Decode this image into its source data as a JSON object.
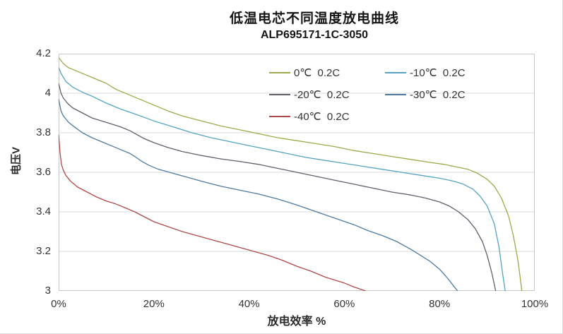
{
  "chart_data": {
    "type": "line",
    "title": "低温电芯不同温度放电曲线",
    "subtitle": "ALP695171-1C-3050",
    "xlabel": "放电效率 %",
    "ylabel": "电压V",
    "xlim": [
      0,
      100
    ],
    "ylim": [
      3.0,
      4.2
    ],
    "x_ticks": [
      "0%",
      "20%",
      "40%",
      "60%",
      "80%",
      "100%"
    ],
    "x_tick_values": [
      0,
      20,
      40,
      60,
      80,
      100
    ],
    "y_ticks": [
      "4.2",
      "4",
      "3.8",
      "3.6",
      "3.4",
      "3.2",
      "3"
    ],
    "y_tick_values": [
      4.2,
      4.0,
      3.8,
      3.6,
      3.4,
      3.2,
      3.0
    ],
    "grid": "horizontal-only",
    "grid_color": "#d9d9d9",
    "border_color": "#c6c6c6",
    "legend_position": "top-center-inside, 2 columns",
    "series": [
      {
        "name": "0℃  0.2C",
        "color": "#9fa84a",
        "points": [
          [
            0,
            4.18
          ],
          [
            1,
            4.15
          ],
          [
            2,
            4.13
          ],
          [
            4,
            4.11
          ],
          [
            6,
            4.09
          ],
          [
            8,
            4.07
          ],
          [
            10,
            4.05
          ],
          [
            12,
            4.02
          ],
          [
            15,
            3.99
          ],
          [
            18,
            3.96
          ],
          [
            20,
            3.94
          ],
          [
            23,
            3.91
          ],
          [
            26,
            3.885
          ],
          [
            30,
            3.86
          ],
          [
            34,
            3.835
          ],
          [
            38,
            3.815
          ],
          [
            42,
            3.795
          ],
          [
            46,
            3.775
          ],
          [
            50,
            3.76
          ],
          [
            54,
            3.745
          ],
          [
            58,
            3.73
          ],
          [
            62,
            3.71
          ],
          [
            66,
            3.695
          ],
          [
            70,
            3.68
          ],
          [
            74,
            3.665
          ],
          [
            78,
            3.65
          ],
          [
            81,
            3.64
          ],
          [
            84,
            3.625
          ],
          [
            86,
            3.615
          ],
          [
            88,
            3.595
          ],
          [
            90,
            3.565
          ],
          [
            91.5,
            3.53
          ],
          [
            93,
            3.47
          ],
          [
            94.5,
            3.38
          ],
          [
            95.5,
            3.28
          ],
          [
            96.5,
            3.15
          ],
          [
            97.3,
            3.0
          ]
        ]
      },
      {
        "name": "-10℃  0.2C",
        "color": "#55a3c0",
        "points": [
          [
            0,
            4.13
          ],
          [
            0.5,
            4.1
          ],
          [
            1.5,
            4.06
          ],
          [
            3,
            4.03
          ],
          [
            5,
            4.005
          ],
          [
            7,
            3.985
          ],
          [
            10,
            3.95
          ],
          [
            13,
            3.92
          ],
          [
            16,
            3.895
          ],
          [
            20,
            3.86
          ],
          [
            24,
            3.83
          ],
          [
            28,
            3.8
          ],
          [
            32,
            3.775
          ],
          [
            36,
            3.755
          ],
          [
            40,
            3.735
          ],
          [
            44,
            3.715
          ],
          [
            48,
            3.695
          ],
          [
            52,
            3.675
          ],
          [
            56,
            3.66
          ],
          [
            60,
            3.645
          ],
          [
            64,
            3.63
          ],
          [
            68,
            3.615
          ],
          [
            72,
            3.6
          ],
          [
            76,
            3.585
          ],
          [
            80,
            3.57
          ],
          [
            83,
            3.555
          ],
          [
            85,
            3.54
          ],
          [
            87,
            3.515
          ],
          [
            88.5,
            3.48
          ],
          [
            90,
            3.43
          ],
          [
            91.5,
            3.34
          ],
          [
            92.5,
            3.22
          ],
          [
            93.3,
            3.08
          ],
          [
            93.8,
            3.0
          ]
        ]
      },
      {
        "name": "-20℃  0.2C",
        "color": "#5f5f6d",
        "points": [
          [
            0,
            4.05
          ],
          [
            0.5,
            4.0
          ],
          [
            1,
            3.975
          ],
          [
            2,
            3.945
          ],
          [
            3,
            3.925
          ],
          [
            5,
            3.9
          ],
          [
            7,
            3.875
          ],
          [
            9,
            3.86
          ],
          [
            11,
            3.845
          ],
          [
            13,
            3.83
          ],
          [
            15,
            3.81
          ],
          [
            16.5,
            3.79
          ],
          [
            18,
            3.77
          ],
          [
            20,
            3.75
          ],
          [
            23,
            3.725
          ],
          [
            26,
            3.705
          ],
          [
            30,
            3.685
          ],
          [
            34,
            3.668
          ],
          [
            38,
            3.655
          ],
          [
            42,
            3.64
          ],
          [
            46,
            3.62
          ],
          [
            50,
            3.6
          ],
          [
            54,
            3.58
          ],
          [
            58,
            3.56
          ],
          [
            62,
            3.54
          ],
          [
            66,
            3.52
          ],
          [
            70,
            3.5
          ],
          [
            74,
            3.485
          ],
          [
            77,
            3.47
          ],
          [
            80,
            3.45
          ],
          [
            82,
            3.43
          ],
          [
            84,
            3.4
          ],
          [
            86,
            3.36
          ],
          [
            87.5,
            3.315
          ],
          [
            89,
            3.25
          ],
          [
            90,
            3.18
          ],
          [
            91,
            3.09
          ],
          [
            91.8,
            3.0
          ]
        ]
      },
      {
        "name": "-30℃  0.2C",
        "color": "#4d7a9e",
        "points": [
          [
            0,
            3.97
          ],
          [
            0.5,
            3.91
          ],
          [
            1,
            3.885
          ],
          [
            2,
            3.855
          ],
          [
            3,
            3.835
          ],
          [
            5,
            3.8
          ],
          [
            7,
            3.775
          ],
          [
            9,
            3.755
          ],
          [
            11,
            3.735
          ],
          [
            13,
            3.715
          ],
          [
            15,
            3.695
          ],
          [
            16,
            3.68
          ],
          [
            17.5,
            3.655
          ],
          [
            19,
            3.635
          ],
          [
            21,
            3.615
          ],
          [
            24,
            3.595
          ],
          [
            27,
            3.575
          ],
          [
            30,
            3.555
          ],
          [
            34,
            3.53
          ],
          [
            38,
            3.51
          ],
          [
            42,
            3.49
          ],
          [
            46,
            3.465
          ],
          [
            50,
            3.435
          ],
          [
            53,
            3.41
          ],
          [
            56,
            3.385
          ],
          [
            59,
            3.36
          ],
          [
            62,
            3.335
          ],
          [
            65,
            3.305
          ],
          [
            68,
            3.28
          ],
          [
            71,
            3.25
          ],
          [
            74,
            3.21
          ],
          [
            76,
            3.18
          ],
          [
            78,
            3.15
          ],
          [
            80,
            3.11
          ],
          [
            81.5,
            3.07
          ],
          [
            82.8,
            3.03
          ],
          [
            83.8,
            3.0
          ]
        ]
      },
      {
        "name": "-40℃  0.2C",
        "color": "#ac4a48",
        "points": [
          [
            0,
            3.79
          ],
          [
            0.3,
            3.7
          ],
          [
            0.6,
            3.64
          ],
          [
            1,
            3.61
          ],
          [
            1.5,
            3.585
          ],
          [
            2.5,
            3.555
          ],
          [
            4,
            3.525
          ],
          [
            6,
            3.5
          ],
          [
            8,
            3.475
          ],
          [
            10,
            3.455
          ],
          [
            12,
            3.44
          ],
          [
            14,
            3.42
          ],
          [
            16,
            3.4
          ],
          [
            18,
            3.375
          ],
          [
            20,
            3.35
          ],
          [
            23,
            3.325
          ],
          [
            26,
            3.3
          ],
          [
            29,
            3.28
          ],
          [
            32,
            3.26
          ],
          [
            35,
            3.24
          ],
          [
            38,
            3.22
          ],
          [
            41,
            3.2
          ],
          [
            44,
            3.18
          ],
          [
            47,
            3.155
          ],
          [
            50,
            3.125
          ],
          [
            53,
            3.1
          ],
          [
            56,
            3.07
          ],
          [
            58,
            3.055
          ],
          [
            60,
            3.04
          ],
          [
            62,
            3.02
          ],
          [
            64.5,
            3.0
          ]
        ]
      }
    ]
  }
}
